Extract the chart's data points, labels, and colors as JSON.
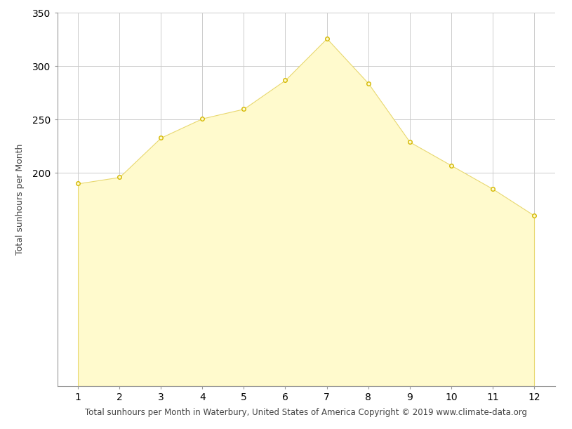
{
  "months": [
    1,
    2,
    3,
    4,
    5,
    6,
    7,
    8,
    9,
    10,
    11,
    12
  ],
  "sunhours": [
    190,
    196,
    233,
    251,
    260,
    287,
    326,
    284,
    229,
    207,
    185,
    160
  ],
  "fill_color": "#FFFACD",
  "fill_edge_color": "#E8D870",
  "marker_face_color": "#FFFACD",
  "marker_edge_color": "#D4B800",
  "ylabel": "Total sunhours per Month",
  "xlabel": "Total sunhours per Month in Waterbury, United States of America Copyright © 2019 www.climate-data.org",
  "ylim_bottom": 0,
  "ylim_top": 350,
  "xlim_left": 0.5,
  "xlim_right": 12.5,
  "yticks": [
    200,
    250,
    300,
    350
  ],
  "xticks": [
    1,
    2,
    3,
    4,
    5,
    6,
    7,
    8,
    9,
    10,
    11,
    12
  ],
  "grid_color": "#CCCCCC",
  "background_color": "#FFFFFF",
  "label_fontsize": 9,
  "tick_fontsize": 10,
  "xlabel_fontsize": 8.5
}
